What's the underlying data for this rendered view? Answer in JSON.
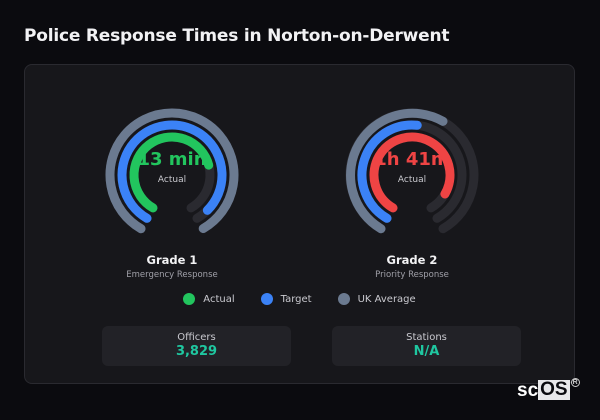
{
  "header": {
    "title": "Police Response Times in Norton-on-Derwent"
  },
  "colors": {
    "actual_g1": "#22c55e",
    "actual_g2": "#ef4444",
    "target": "#3b82f6",
    "uk_average": "#6b7a90",
    "track": "#2a2a30",
    "stat_value": "#1fc7a0"
  },
  "chart_data": [
    {
      "type": "radial-bar",
      "title": "Grade 1",
      "subtitle": "Emergency Response",
      "center_value": "13 min",
      "center_label": "Actual",
      "series": [
        {
          "name": "Actual",
          "fraction": 0.75
        },
        {
          "name": "Target",
          "fraction": 0.95
        },
        {
          "name": "UK Average",
          "fraction": 1.0
        }
      ]
    },
    {
      "type": "radial-bar",
      "title": "Grade 2",
      "subtitle": "Priority Response",
      "center_value": "1h 41m",
      "center_label": "Actual",
      "series": [
        {
          "name": "Actual",
          "fraction": 0.9
        },
        {
          "name": "Target",
          "fraction": 0.52
        },
        {
          "name": "UK Average",
          "fraction": 0.6
        }
      ]
    }
  ],
  "grade1": {
    "value": "13 min",
    "label": "Actual",
    "title": "Grade 1",
    "desc": "Emergency Response"
  },
  "grade2": {
    "value": "1h 41m",
    "label": "Actual",
    "title": "Grade 2",
    "desc": "Priority Response"
  },
  "legend": {
    "actual": "Actual",
    "target": "Target",
    "uk": "UK Average"
  },
  "stats": {
    "officers": {
      "label": "Officers",
      "value": "3,829"
    },
    "stations": {
      "label": "Stations",
      "value": "N/A"
    }
  },
  "branding": {
    "logo_sc": "sc",
    "logo_os": "OS",
    "reg": "R"
  }
}
